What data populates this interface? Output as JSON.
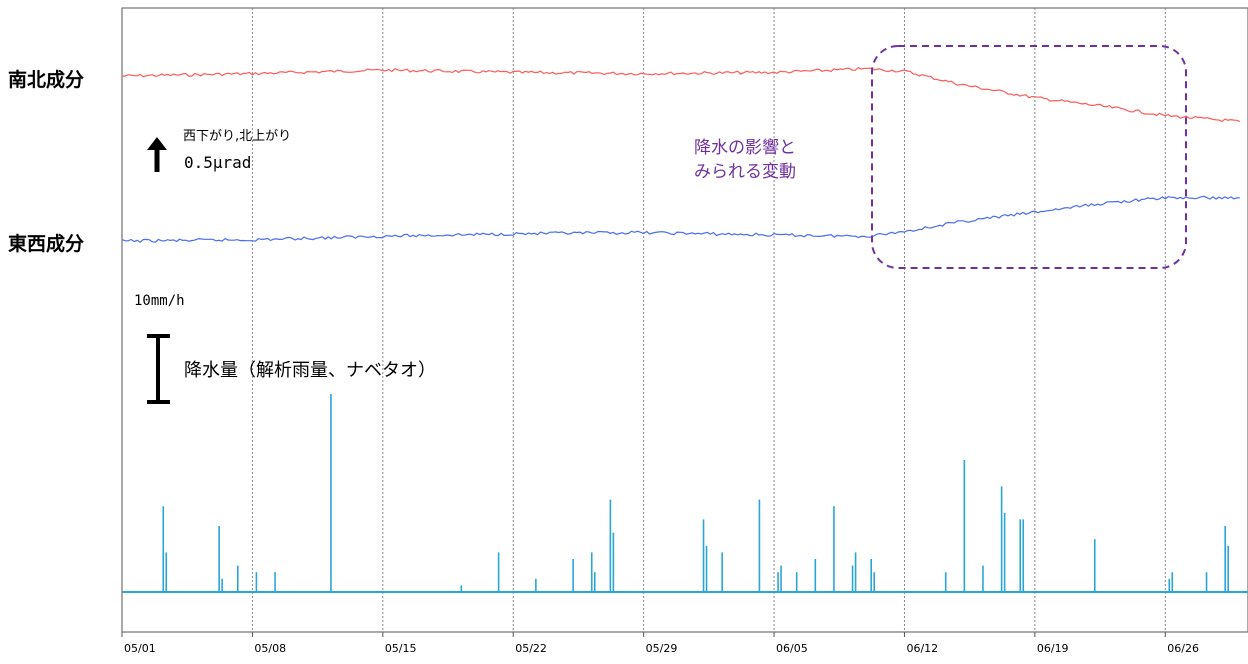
{
  "labels": {
    "ns_component": "南北成分",
    "ew_component": "東西成分",
    "direction": "西下がり,北上がり",
    "tilt_scale": "0.5μrad",
    "rain_scale": "10mm/h",
    "rain_label": "降水量（解析雨量、ナベタオ）",
    "annotation_line1": "降水の影響と",
    "annotation_line2": "みられる変動"
  },
  "colors": {
    "ns_series": "#ff5a5a",
    "ew_series": "#4a6cf0",
    "rain": "#2aa6d6",
    "annotation": "#7030a0",
    "grid": "#888888"
  },
  "chart_data": {
    "type": "line",
    "x_axis": {
      "ticks": [
        "05/01",
        "05/08",
        "05/15",
        "05/22",
        "05/29",
        "06/05",
        "06/12",
        "06/19",
        "06/26"
      ],
      "start": "05/01",
      "end": "06/30"
    },
    "series": [
      {
        "name": "南北成分",
        "unit": "μrad",
        "x": [
          "05/01",
          "05/08",
          "05/15",
          "05/22",
          "05/29",
          "06/05",
          "06/10",
          "06/12",
          "06/15",
          "06/19",
          "06/23",
          "06/26",
          "06/30"
        ],
        "values": [
          0,
          0.02,
          0.05,
          0.03,
          0.02,
          0.03,
          0.06,
          0.04,
          -0.07,
          -0.18,
          -0.26,
          -0.33,
          -0.38
        ]
      },
      {
        "name": "東西成分",
        "unit": "μrad",
        "x": [
          "05/01",
          "05/08",
          "05/15",
          "05/22",
          "05/29",
          "06/05",
          "06/10",
          "06/12",
          "06/15",
          "06/19",
          "06/23",
          "06/26",
          "06/30"
        ],
        "values": [
          0,
          0.01,
          0.04,
          0.06,
          0.07,
          0.05,
          0.04,
          0.08,
          0.16,
          0.24,
          0.32,
          0.36,
          0.36
        ]
      }
    ],
    "rain": {
      "name": "降水量（解析雨量、ナベタオ）",
      "unit": "mm/h",
      "x": [
        "05/03",
        "05/03",
        "05/06",
        "05/06",
        "05/07",
        "05/08",
        "05/09",
        "05/12",
        "05/19",
        "05/21",
        "05/23",
        "05/25",
        "05/26",
        "05/26",
        "05/27",
        "05/27",
        "06/01",
        "06/01",
        "06/02",
        "06/04",
        "06/05",
        "06/05",
        "06/06",
        "06/07",
        "06/08",
        "06/09",
        "06/09",
        "06/10",
        "06/10",
        "06/14",
        "06/15",
        "06/16",
        "06/17",
        "06/17",
        "06/18",
        "06/18",
        "06/22",
        "06/26",
        "06/26",
        "06/28",
        "06/29",
        "06/29"
      ],
      "values": [
        13,
        6,
        10,
        2,
        4,
        3,
        3,
        30,
        1,
        6,
        2,
        5,
        6,
        3,
        14,
        9,
        11,
        7,
        6,
        14,
        3,
        4,
        3,
        5,
        13,
        4,
        6,
        5,
        3,
        3,
        20,
        4,
        16,
        12,
        11,
        11,
        8,
        2,
        3,
        3,
        10,
        7
      ]
    },
    "annotation": "降水の影響と みられる変動"
  }
}
